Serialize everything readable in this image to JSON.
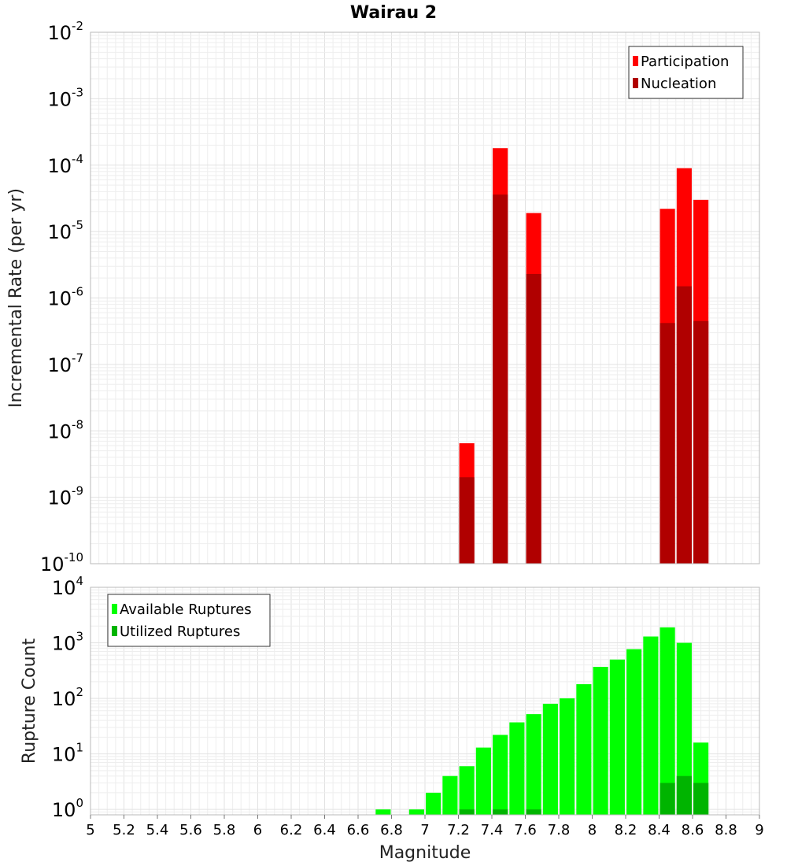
{
  "title": "Wairau 2",
  "colors": {
    "participation": "#ff0000",
    "nucleation": "#b00000",
    "available": "#00ff00",
    "utilized": "#00b400"
  },
  "chart_data": [
    {
      "type": "bar",
      "id": "rates",
      "title": "Wairau 2",
      "xlabel": "",
      "ylabel": "Incremental Rate (per yr)",
      "yscale": "log",
      "ylim": [
        1e-10,
        0.01
      ],
      "xlim": [
        5,
        9
      ],
      "bar_width": 0.09,
      "legend_position": "top-right",
      "y_ticks": [
        {
          "base": "10",
          "exp": "-10"
        },
        {
          "base": "10",
          "exp": "-9"
        },
        {
          "base": "10",
          "exp": "-8"
        },
        {
          "base": "10",
          "exp": "-7"
        },
        {
          "base": "10",
          "exp": "-6"
        },
        {
          "base": "10",
          "exp": "-5"
        },
        {
          "base": "10",
          "exp": "-4"
        },
        {
          "base": "10",
          "exp": "-3"
        },
        {
          "base": "10",
          "exp": "-2"
        }
      ],
      "series": [
        {
          "name": "Participation",
          "color_key": "participation",
          "points": [
            {
              "x": 7.25,
              "y": 6.5e-09
            },
            {
              "x": 7.45,
              "y": 0.00018
            },
            {
              "x": 7.65,
              "y": 1.9e-05
            },
            {
              "x": 8.45,
              "y": 2.2e-05
            },
            {
              "x": 8.55,
              "y": 9e-05
            },
            {
              "x": 8.65,
              "y": 3e-05
            }
          ]
        },
        {
          "name": "Nucleation",
          "color_key": "nucleation",
          "points": [
            {
              "x": 7.25,
              "y": 2e-09
            },
            {
              "x": 7.45,
              "y": 3.6e-05
            },
            {
              "x": 7.65,
              "y": 2.3e-06
            },
            {
              "x": 8.45,
              "y": 4.2e-07
            },
            {
              "x": 8.55,
              "y": 1.5e-06
            },
            {
              "x": 8.65,
              "y": 4.5e-07
            }
          ]
        }
      ]
    },
    {
      "type": "bar",
      "id": "counts",
      "title": "",
      "xlabel": "Magnitude",
      "ylabel": "Rupture Count",
      "yscale": "log",
      "ylim": [
        0.8,
        10000.0
      ],
      "xlim": [
        5,
        9
      ],
      "bar_width": 0.09,
      "legend_position": "top-left",
      "x_ticks": [
        "5",
        "5.2",
        "5.4",
        "5.6",
        "5.8",
        "6",
        "6.2",
        "6.4",
        "6.6",
        "6.8",
        "7",
        "7.2",
        "7.4",
        "7.6",
        "7.8",
        "8",
        "8.2",
        "8.4",
        "8.6",
        "8.8",
        "9"
      ],
      "y_ticks": [
        {
          "base": "10",
          "exp": "0"
        },
        {
          "base": "10",
          "exp": "1"
        },
        {
          "base": "10",
          "exp": "2"
        },
        {
          "base": "10",
          "exp": "3"
        },
        {
          "base": "10",
          "exp": "4"
        }
      ],
      "series": [
        {
          "name": "Available Ruptures",
          "color_key": "available",
          "points": [
            {
              "x": 6.75,
              "y": 1
            },
            {
              "x": 6.95,
              "y": 1
            },
            {
              "x": 7.05,
              "y": 2
            },
            {
              "x": 7.15,
              "y": 4
            },
            {
              "x": 7.25,
              "y": 6
            },
            {
              "x": 7.35,
              "y": 13
            },
            {
              "x": 7.45,
              "y": 22
            },
            {
              "x": 7.55,
              "y": 37
            },
            {
              "x": 7.65,
              "y": 52
            },
            {
              "x": 7.75,
              "y": 80
            },
            {
              "x": 7.85,
              "y": 100
            },
            {
              "x": 7.95,
              "y": 180
            },
            {
              "x": 8.05,
              "y": 370
            },
            {
              "x": 8.15,
              "y": 500
            },
            {
              "x": 8.25,
              "y": 770
            },
            {
              "x": 8.35,
              "y": 1300
            },
            {
              "x": 8.45,
              "y": 1900
            },
            {
              "x": 8.55,
              "y": 1000
            },
            {
              "x": 8.65,
              "y": 16
            }
          ]
        },
        {
          "name": "Utilized Ruptures",
          "color_key": "utilized",
          "points": [
            {
              "x": 7.25,
              "y": 1
            },
            {
              "x": 7.45,
              "y": 1
            },
            {
              "x": 7.65,
              "y": 1
            },
            {
              "x": 8.45,
              "y": 3
            },
            {
              "x": 8.55,
              "y": 4
            },
            {
              "x": 8.65,
              "y": 3
            }
          ]
        }
      ]
    }
  ]
}
